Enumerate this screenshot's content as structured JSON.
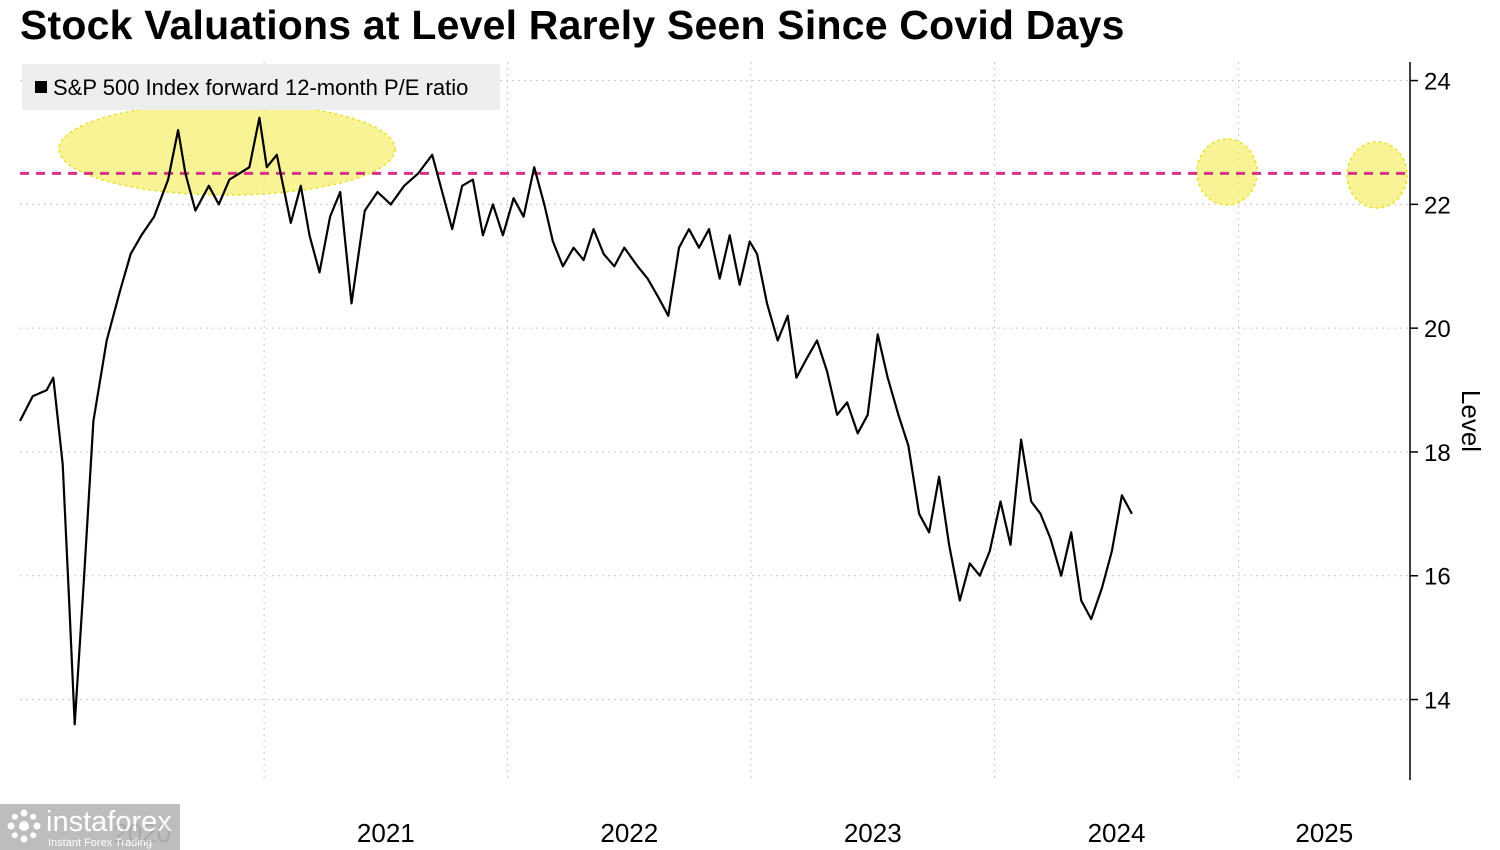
{
  "title": "Stock Valuations at Level Rarely Seen Since Covid Days",
  "legend": {
    "label": "S&P 500 Index forward 12-month P/E ratio",
    "color": "#000000"
  },
  "watermark": {
    "name": "instaforex",
    "subtitle": "Instant Forex Trading"
  },
  "chart_data": {
    "type": "line",
    "title": "Stock Valuations at Level Rarely Seen Since Covid Days",
    "ylabel": "Level",
    "ylim": [
      12.7,
      24.3
    ],
    "y_ticks": [
      14,
      16,
      18,
      20,
      22,
      24
    ],
    "y_axis_side": "right",
    "x_ticks": [
      "2020",
      "2021",
      "2022",
      "2023",
      "2024",
      "2025"
    ],
    "grid": true,
    "legend_position": "top-left",
    "reference_line": {
      "value": 22.5,
      "color": "#d63384",
      "style": "dashed"
    },
    "highlights": [
      "2020-08 to 2021-05 peak zone",
      "2024-07 peak",
      "2025-09 current level"
    ],
    "series": [
      {
        "name": "S&P 500 Index forward 12-month P/E ratio",
        "color": "#000000",
        "points": [
          [
            "2020-01-01",
            18.5
          ],
          [
            "2020-01-20",
            18.9
          ],
          [
            "2020-02-10",
            19.0
          ],
          [
            "2020-02-20",
            19.2
          ],
          [
            "2020-03-05",
            17.8
          ],
          [
            "2020-03-15",
            15.5
          ],
          [
            "2020-03-23",
            13.6
          ],
          [
            "2020-04-05",
            15.8
          ],
          [
            "2020-04-20",
            18.5
          ],
          [
            "2020-05-10",
            19.8
          ],
          [
            "2020-05-30",
            20.6
          ],
          [
            "2020-06-15",
            21.2
          ],
          [
            "2020-07-01",
            21.5
          ],
          [
            "2020-07-20",
            21.8
          ],
          [
            "2020-08-10",
            22.4
          ],
          [
            "2020-08-25",
            23.2
          ],
          [
            "2020-09-05",
            22.5
          ],
          [
            "2020-09-20",
            21.9
          ],
          [
            "2020-10-10",
            22.3
          ],
          [
            "2020-10-25",
            22.0
          ],
          [
            "2020-11-10",
            22.4
          ],
          [
            "2020-11-25",
            22.5
          ],
          [
            "2020-12-10",
            22.6
          ],
          [
            "2020-12-25",
            23.4
          ],
          [
            "2021-01-05",
            22.6
          ],
          [
            "2021-01-20",
            22.8
          ],
          [
            "2021-02-10",
            21.7
          ],
          [
            "2021-02-25",
            22.3
          ],
          [
            "2021-03-10",
            21.5
          ],
          [
            "2021-03-25",
            20.9
          ],
          [
            "2021-04-10",
            21.8
          ],
          [
            "2021-04-25",
            22.2
          ],
          [
            "2021-05-12",
            20.4
          ],
          [
            "2021-06-01",
            21.9
          ],
          [
            "2021-06-20",
            22.2
          ],
          [
            "2021-07-10",
            22.0
          ],
          [
            "2021-07-30",
            22.3
          ],
          [
            "2021-08-20",
            22.5
          ],
          [
            "2021-09-10",
            22.8
          ],
          [
            "2021-09-25",
            22.2
          ],
          [
            "2021-10-10",
            21.6
          ],
          [
            "2021-10-25",
            22.3
          ],
          [
            "2021-11-10",
            22.4
          ],
          [
            "2021-11-25",
            21.5
          ],
          [
            "2021-12-10",
            22.0
          ],
          [
            "2021-12-25",
            21.5
          ],
          [
            "2022-01-10",
            22.1
          ],
          [
            "2022-01-25",
            21.8
          ],
          [
            "2022-02-10",
            22.6
          ],
          [
            "2022-02-25",
            22.0
          ],
          [
            "2022-03-10",
            21.4
          ],
          [
            "2022-03-25",
            21.0
          ],
          [
            "2022-04-10",
            21.3
          ],
          [
            "2022-04-25",
            21.1
          ],
          [
            "2022-05-10",
            21.6
          ],
          [
            "2022-05-25",
            21.2
          ],
          [
            "2022-06-10",
            21.0
          ],
          [
            "2022-06-25",
            21.3
          ],
          [
            "2022-07-15",
            21.0
          ],
          [
            "2022-07-30",
            20.8
          ],
          [
            "2022-08-15",
            20.5
          ],
          [
            "2022-08-30",
            20.2
          ],
          [
            "2022-09-15",
            21.3
          ],
          [
            "2022-09-30",
            21.6
          ],
          [
            "2022-10-15",
            21.3
          ],
          [
            "2022-10-30",
            21.6
          ],
          [
            "2022-11-15",
            20.8
          ],
          [
            "2022-11-30",
            21.5
          ],
          [
            "2022-12-15",
            20.7
          ],
          [
            "2022-12-30",
            21.4
          ],
          [
            "2023-01-10",
            21.2
          ],
          [
            "2023-01-25",
            20.4
          ],
          [
            "2023-02-10",
            19.8
          ],
          [
            "2023-02-25",
            20.2
          ],
          [
            "2023-03-10",
            19.2
          ],
          [
            "2023-03-25",
            19.5
          ],
          [
            "2023-04-10",
            19.8
          ],
          [
            "2023-04-25",
            19.3
          ],
          [
            "2023-05-10",
            18.6
          ],
          [
            "2023-05-25",
            18.8
          ],
          [
            "2023-06-10",
            18.3
          ],
          [
            "2023-06-25",
            18.6
          ],
          [
            "2023-07-10",
            19.9
          ],
          [
            "2023-07-25",
            19.2
          ],
          [
            "2023-08-10",
            18.6
          ],
          [
            "2023-08-25",
            18.1
          ],
          [
            "2023-09-10",
            17.0
          ],
          [
            "2023-09-25",
            16.7
          ],
          [
            "2023-10-10",
            17.6
          ],
          [
            "2023-10-25",
            16.5
          ],
          [
            "2023-11-10",
            15.6
          ],
          [
            "2023-11-25",
            16.2
          ],
          [
            "2023-12-10",
            16.0
          ],
          [
            "2023-12-25",
            16.4
          ],
          [
            "2024-01-10",
            17.2
          ],
          [
            "2024-01-25",
            16.5
          ],
          [
            "2024-02-10",
            18.2
          ],
          [
            "2024-02-25",
            17.2
          ],
          [
            "2024-03-10",
            17.0
          ],
          [
            "2024-03-25",
            16.6
          ],
          [
            "2024-04-10",
            16.0
          ],
          [
            "2024-04-25",
            16.7
          ],
          [
            "2024-05-10",
            15.6
          ],
          [
            "2024-05-25",
            15.3
          ],
          [
            "2024-06-10",
            15.8
          ],
          [
            "2024-06-25",
            16.4
          ],
          [
            "2024-07-10",
            17.3
          ],
          [
            "2024-07-25",
            17.0
          ]
        ]
      }
    ]
  }
}
